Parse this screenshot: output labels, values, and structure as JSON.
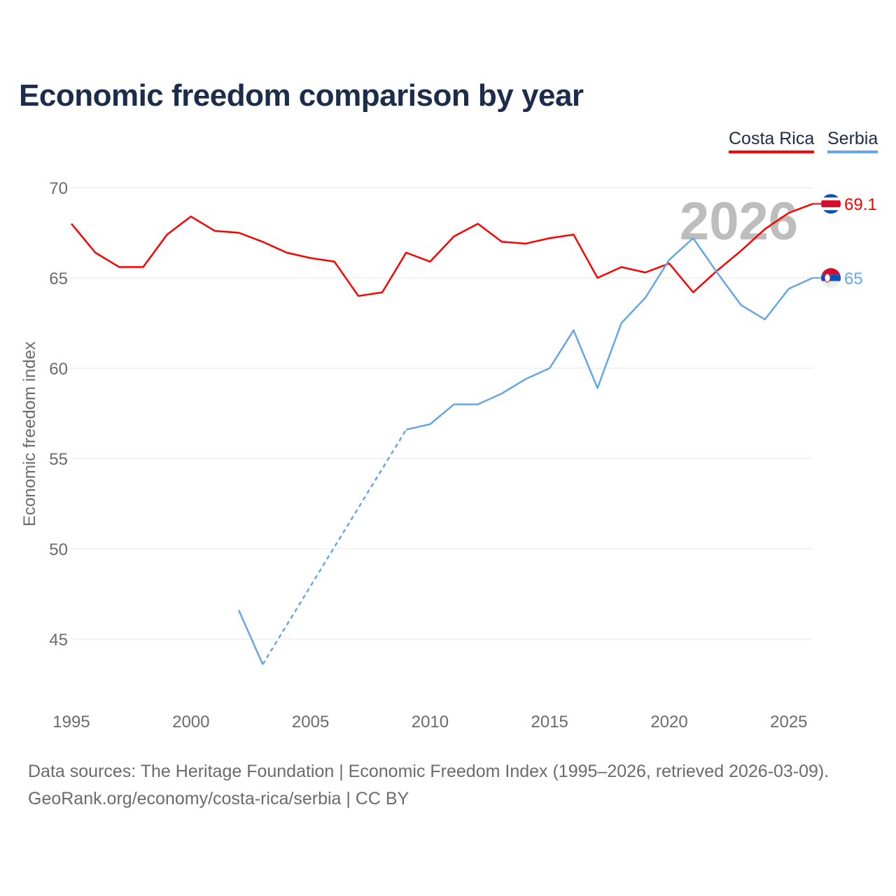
{
  "chart_data": {
    "type": "line",
    "title": "Economic freedom comparison by year",
    "xlabel": "",
    "ylabel": "Economic freedom index",
    "xlim": [
      1995,
      2026
    ],
    "ylim": [
      42,
      70
    ],
    "x_ticks": [
      1995,
      2000,
      2005,
      2010,
      2015,
      2020,
      2025
    ],
    "y_ticks": [
      45,
      50,
      55,
      60,
      65,
      70
    ],
    "grid": true,
    "legend_position": "top-right",
    "watermark_year": "2026",
    "series": [
      {
        "name": "Costa Rica",
        "color": "#ff0000",
        "end_label": "69.1",
        "flag": "costa-rica-flag",
        "x": [
          1995,
          1996,
          1997,
          1998,
          1999,
          2000,
          2001,
          2002,
          2003,
          2004,
          2005,
          2006,
          2007,
          2008,
          2009,
          2010,
          2011,
          2012,
          2013,
          2014,
          2015,
          2016,
          2017,
          2018,
          2019,
          2020,
          2021,
          2022,
          2023,
          2024,
          2025,
          2026
        ],
        "y": [
          68.0,
          66.4,
          65.6,
          65.6,
          67.4,
          68.4,
          67.6,
          67.5,
          67.0,
          66.4,
          66.1,
          65.9,
          64.0,
          64.2,
          66.4,
          65.9,
          67.3,
          68.0,
          67.0,
          66.9,
          67.2,
          67.4,
          65.0,
          65.6,
          65.3,
          65.8,
          64.2,
          65.4,
          66.5,
          67.7,
          68.6,
          69.1
        ]
      },
      {
        "name": "Serbia",
        "color": "#64a6e8",
        "end_label": "65",
        "flag": "serbia-flag",
        "x": [
          2002,
          2003,
          2009,
          2010,
          2011,
          2012,
          2013,
          2014,
          2015,
          2016,
          2017,
          2018,
          2019,
          2020,
          2021,
          2022,
          2023,
          2024,
          2025,
          2026
        ],
        "y": [
          46.6,
          43.6,
          56.6,
          56.9,
          58.0,
          58.0,
          58.6,
          59.4,
          60.0,
          62.1,
          58.9,
          62.5,
          63.9,
          66.0,
          67.2,
          65.3,
          63.5,
          62.7,
          64.4,
          65.0
        ],
        "dashed_gap": [
          2003,
          2009
        ]
      }
    ]
  },
  "footer": {
    "line1": "Data sources: The Heritage Foundation | Economic Freedom Index (1995–2026, retrieved 2026-03-09).",
    "line2": "GeoRank.org/economy/costa-rica/serbia | CC BY"
  }
}
